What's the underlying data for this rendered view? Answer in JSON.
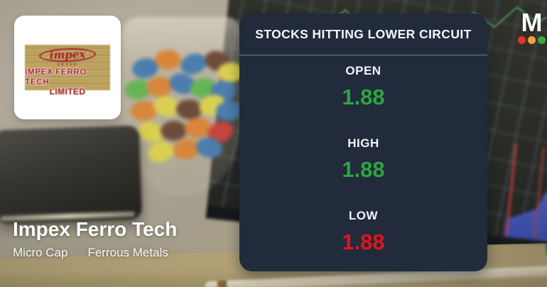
{
  "panel": {
    "title": "STOCKS HITTING LOWER CIRCUIT",
    "stats": [
      {
        "label": "OPEN",
        "value": "1.88",
        "color": "#2fa43f"
      },
      {
        "label": "HIGH",
        "value": "1.88",
        "color": "#2fa43f"
      },
      {
        "label": "LOW",
        "value": "1.88",
        "color": "#e3141a"
      }
    ]
  },
  "company": {
    "name": "Impex Ferro Tech",
    "tags": [
      "Micro Cap",
      "Ferrous Metals"
    ]
  },
  "logo_card": {
    "brand_script": "impex",
    "brand_group": "GROUP",
    "line1": "IMPEX FERRO TECH",
    "line2": "LIMITED"
  },
  "brand_logo": {
    "letter": "M",
    "dot_colors": [
      "#e63329",
      "#f0a03c",
      "#3aa83e"
    ]
  },
  "colors": {
    "panel_bg": "#212b3b",
    "green": "#2fa43f",
    "red": "#e3141a",
    "card_bg": "#ffffff"
  }
}
